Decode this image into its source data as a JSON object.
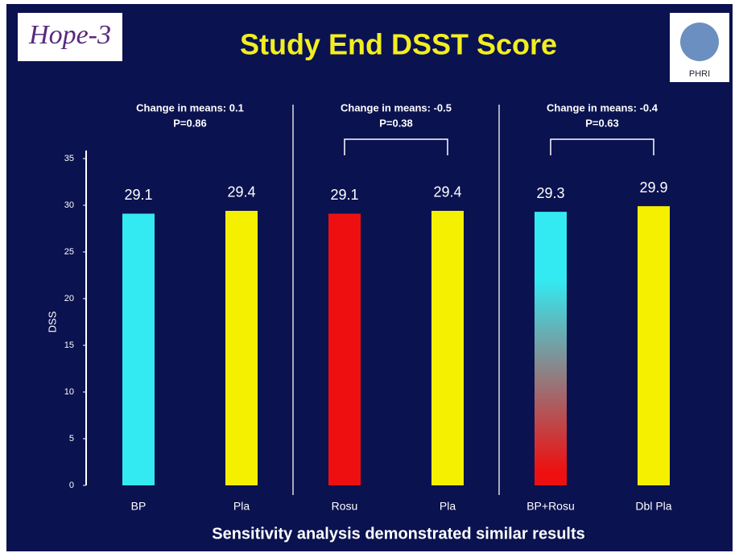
{
  "title": "Study End DSST Score",
  "logo_left": "Hope-3",
  "logo_right": "PHRI",
  "footer": "Sensitivity analysis demonstrated similar results",
  "chart_data": {
    "type": "bar",
    "ylabel": "DSS",
    "categories": [
      "BP",
      "Pla",
      "Rosu",
      "Pla",
      "BP+Rosu",
      "Dbl Pla"
    ],
    "values": [
      29.1,
      29.4,
      29.1,
      29.4,
      29.3,
      29.9
    ],
    "colors": [
      "#33eaf2",
      "#f5f000",
      "#ee1010",
      "#f5f000",
      [
        "#33eaf2",
        "#ee1010"
      ],
      "#f5f000"
    ],
    "ylim": [
      0,
      35
    ],
    "yticks": [
      0,
      5,
      10,
      15,
      20,
      25,
      30,
      35
    ],
    "groups": [
      {
        "lines": [
          "Change in means: 0.1",
          "P=0.86"
        ],
        "bracket": false
      },
      {
        "lines": [
          "Change in means: -0.5",
          "P=0.38"
        ],
        "bracket": true
      },
      {
        "lines": [
          "Change in means: -0.4",
          "P=0.63"
        ],
        "bracket": true
      }
    ]
  }
}
